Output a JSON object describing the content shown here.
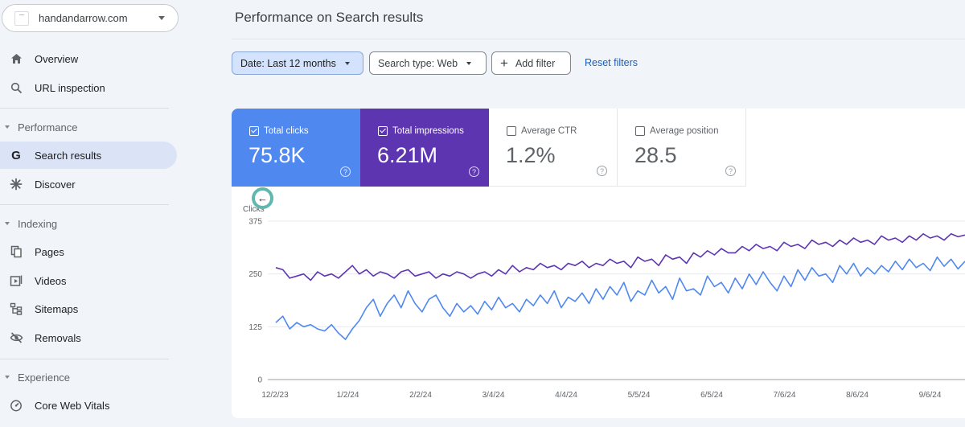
{
  "sidebar": {
    "property": "handandarrow.com",
    "items_top": [
      {
        "label": "Overview",
        "icon": "home-icon"
      },
      {
        "label": "URL inspection",
        "icon": "search-icon"
      }
    ],
    "sections": [
      {
        "title": "Performance",
        "items": [
          {
            "label": "Search results",
            "icon": "google-g-icon",
            "active": true
          },
          {
            "label": "Discover",
            "icon": "asterisk-icon"
          }
        ]
      },
      {
        "title": "Indexing",
        "items": [
          {
            "label": "Pages",
            "icon": "pages-icon"
          },
          {
            "label": "Videos",
            "icon": "video-icon"
          },
          {
            "label": "Sitemaps",
            "icon": "sitemap-icon"
          },
          {
            "label": "Removals",
            "icon": "eye-off-icon"
          }
        ]
      },
      {
        "title": "Experience",
        "items": [
          {
            "label": "Core Web Vitals",
            "icon": "gauge-icon"
          }
        ]
      }
    ]
  },
  "main": {
    "title": "Performance on Search results",
    "filters": {
      "date": "Date: Last 12 months",
      "search_type": "Search type: Web",
      "add_filter": "Add filter",
      "reset": "Reset filters"
    },
    "metrics": [
      {
        "label": "Total clicks",
        "value": "75.8K",
        "checked": true,
        "color": "#4f88ef"
      },
      {
        "label": "Total impressions",
        "value": "6.21M",
        "checked": true,
        "color": "#5e35b1"
      },
      {
        "label": "Average CTR",
        "value": "1.2%",
        "checked": false
      },
      {
        "label": "Average position",
        "value": "28.5",
        "checked": false
      }
    ]
  },
  "chart_data": {
    "type": "line",
    "ylabel": "Clicks",
    "yticks": [
      "375",
      "250",
      "125",
      "0"
    ],
    "ylim": [
      0,
      375
    ],
    "xticks": [
      "12/2/23",
      "1/2/24",
      "2/2/24",
      "3/4/24",
      "4/4/24",
      "5/5/24",
      "6/5/24",
      "7/6/24",
      "8/6/24",
      "9/6/24"
    ],
    "series": [
      {
        "name": "Total clicks",
        "color": "#4f88ef",
        "values": [
          135,
          150,
          120,
          135,
          125,
          130,
          120,
          115,
          130,
          110,
          95,
          120,
          140,
          170,
          190,
          150,
          180,
          200,
          170,
          210,
          180,
          160,
          190,
          200,
          170,
          150,
          180,
          160,
          175,
          155,
          185,
          165,
          195,
          170,
          180,
          160,
          190,
          175,
          200,
          180,
          210,
          170,
          195,
          185,
          205,
          180,
          215,
          190,
          220,
          200,
          230,
          185,
          210,
          200,
          235,
          205,
          220,
          190,
          240,
          210,
          215,
          200,
          245,
          220,
          230,
          205,
          240,
          215,
          250,
          225,
          255,
          230,
          210,
          245,
          220,
          260,
          235,
          265,
          245,
          250,
          230,
          270,
          250,
          275,
          245,
          265,
          250,
          270,
          255,
          280,
          260,
          285,
          265,
          275,
          258,
          290,
          268,
          285,
          262,
          280
        ]
      },
      {
        "name": "Total impressions",
        "color": "#5e35b1",
        "values": [
          265,
          260,
          240,
          245,
          250,
          235,
          255,
          245,
          250,
          240,
          255,
          270,
          250,
          260,
          245,
          255,
          250,
          240,
          255,
          260,
          245,
          250,
          255,
          240,
          250,
          245,
          255,
          250,
          240,
          250,
          255,
          245,
          260,
          250,
          270,
          255,
          265,
          260,
          275,
          265,
          270,
          260,
          275,
          270,
          280,
          265,
          275,
          270,
          285,
          275,
          280,
          265,
          290,
          280,
          285,
          270,
          295,
          285,
          290,
          275,
          300,
          290,
          305,
          295,
          310,
          300,
          300,
          315,
          305,
          320,
          310,
          315,
          305,
          325,
          315,
          320,
          310,
          330,
          320,
          325,
          315,
          330,
          320,
          335,
          325,
          330,
          320,
          340,
          330,
          335,
          325,
          340,
          330,
          345,
          335,
          340,
          330,
          345,
          338,
          342
        ]
      }
    ]
  }
}
